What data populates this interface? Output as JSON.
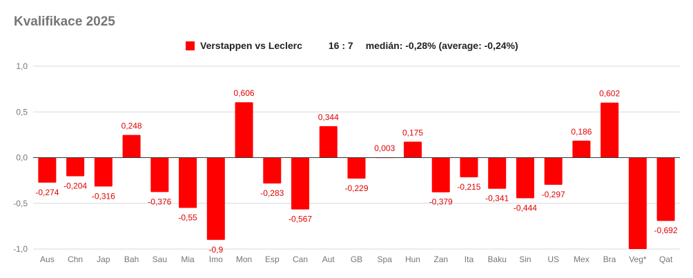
{
  "chart_data": {
    "type": "bar",
    "title": "Kvalifikace 2025",
    "legend": {
      "series_name": "Verstappen vs Leclerc",
      "score": "16 : 7",
      "summary": "medián: -0,28% (average: -0,24%)",
      "placement": "top"
    },
    "color": "#ff0000",
    "ylim": [
      -1.0,
      1.0
    ],
    "yticks": [
      "1,0",
      "0,5",
      "0,0",
      "-0,5",
      "-1,0"
    ],
    "ytick_values": [
      1.0,
      0.5,
      0.0,
      -0.5,
      -1.0
    ],
    "grid": true,
    "categories": [
      "Aus",
      "Chn",
      "Jap",
      "Bah",
      "Sau",
      "Mia",
      "Imo",
      "Mon",
      "Esp",
      "Can",
      "Aut",
      "GB",
      "Spa",
      "Hun",
      "Zan",
      "Ita",
      "Baku",
      "Sin",
      "US",
      "Mex",
      "Bra",
      "Veg*",
      "Qat"
    ],
    "values": [
      -0.274,
      -0.204,
      -0.316,
      0.248,
      -0.376,
      -0.55,
      -0.9,
      0.606,
      -0.283,
      -0.567,
      0.344,
      -0.229,
      0.003,
      0.175,
      -0.379,
      -0.215,
      -0.341,
      -0.444,
      -0.297,
      0.186,
      0.602,
      -1.0,
      -0.692
    ],
    "labels": [
      "-0,274",
      "-0,204",
      "-0,316",
      "0,248",
      "-0,376",
      "-0,55",
      "-0,9",
      "0,606",
      "-0,283",
      "-0,567",
      "0,344",
      "-0,229",
      "0,003",
      "0,175",
      "-0,379",
      "-0,215",
      "-0,341",
      "-0,444",
      "-0,297",
      "0,186",
      "0,602",
      "",
      "-0,692"
    ]
  }
}
